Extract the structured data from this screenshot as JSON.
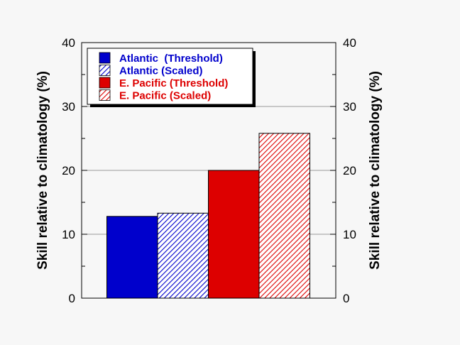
{
  "chart_data": {
    "type": "bar",
    "categories": [
      "Atlantic  (Threshold)",
      "Atlantic (Scaled)",
      "E. Pacific (Threshold)",
      "E. Pacific (Scaled)"
    ],
    "values": [
      12.8,
      13.3,
      20.0,
      25.8
    ],
    "colors": [
      "#0000cc",
      "#0000cc",
      "#dd0000",
      "#dd0000"
    ],
    "fills": [
      "solid",
      "hatched",
      "solid",
      "hatched"
    ],
    "ylabel": "Skill relative to climatology  (%)",
    "ylabel_right": "Skill relative to climatology  (%)",
    "ylim": [
      0,
      40
    ],
    "yticks": [
      "0",
      "10",
      "20",
      "30",
      "40"
    ],
    "grid": "horizontal",
    "legend_position": "top-left"
  }
}
